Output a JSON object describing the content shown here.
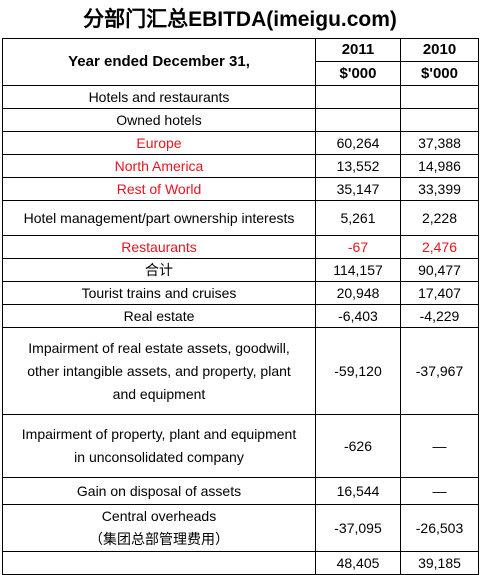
{
  "title": "分部门汇总EBITDA(imeigu.com)",
  "header": {
    "label": "Year ended December 31,",
    "years": [
      "2011",
      "2010"
    ],
    "units": [
      "$'000",
      "$'000"
    ]
  },
  "rows": [
    {
      "label": [
        "Hotels and restaurants"
      ]
    },
    {
      "label": [
        "Owned hotels"
      ]
    },
    {
      "label": [
        "Europe"
      ],
      "values": [
        "60,264",
        "37,388"
      ],
      "label_color": "#e8141c"
    },
    {
      "label": [
        "North America"
      ],
      "values": [
        "13,552",
        "14,986"
      ],
      "label_color": "#e8141c"
    },
    {
      "label": [
        "Rest of World"
      ],
      "values": [
        "35,147",
        "33,399"
      ],
      "label_color": "#e8141c"
    },
    {
      "label": [
        "Hotel management/part ownership interests"
      ],
      "values": [
        "5,261",
        "2,228"
      ]
    },
    {
      "label": [
        "Restaurants"
      ],
      "values": [
        "-67",
        "2,476"
      ],
      "label_color": "#e8141c",
      "value_color": "#e8141c"
    },
    {
      "label": [
        "合计"
      ],
      "values": [
        "114,157",
        "90,477"
      ]
    },
    {
      "label": [
        "Tourist trains and cruises"
      ],
      "values": [
        "20,948",
        "17,407"
      ]
    },
    {
      "label": [
        "Real estate"
      ],
      "values": [
        "-6,403",
        "-4,229"
      ]
    },
    {
      "label": [
        "Impairment of real estate assets, goodwill,",
        "other intangible assets, and property, plant",
        "and equipment"
      ],
      "values": [
        "-59,120",
        "-37,967"
      ]
    },
    {
      "label": [
        "Impairment of property, plant and equipment",
        "in unconsolidated company"
      ],
      "values": [
        "-626",
        "—"
      ]
    },
    {
      "label": [
        "Gain on disposal of assets"
      ],
      "values": [
        "16,544",
        "—"
      ]
    },
    {
      "label": [
        "Central overheads",
        "（集团总部管理费用）"
      ],
      "values": [
        "-37,095",
        "-26,503"
      ]
    },
    {
      "values": [
        "48,405",
        "39,185"
      ]
    }
  ]
}
